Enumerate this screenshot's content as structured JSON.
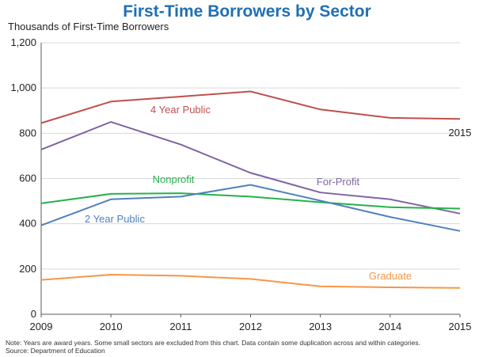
{
  "page": {
    "title": "First-Time Borrowers by Sector",
    "note": "Note: Years are award years. Some small sectors are excluded from this chart. Data contain some duplication across and within categories.",
    "source": "Source: Department of Education"
  },
  "chart_data": {
    "type": "line",
    "title": "First-Time Borrowers by Sector",
    "xlabel": "",
    "ylabel": "Thousands of First-Time Borrowers",
    "x": [
      2009,
      2010,
      2011,
      2012,
      2013,
      2014,
      2015
    ],
    "ylim": [
      0,
      1200
    ],
    "yticks": [
      0,
      200,
      400,
      600,
      800,
      1000,
      1200
    ],
    "ytick_labels": [
      "0",
      "200",
      "400",
      "600",
      "800",
      "1,000",
      "1,200"
    ],
    "grid": "horizontal",
    "series": [
      {
        "name": "4 Year Public",
        "color": "#c0504d",
        "values": [
          845,
          940,
          962,
          985,
          905,
          868,
          863
        ]
      },
      {
        "name": "For-Profit",
        "color": "#8064a2",
        "values": [
          728,
          850,
          750,
          625,
          538,
          508,
          445
        ]
      },
      {
        "name": "Nonprofit",
        "color": "#24b24b",
        "values": [
          490,
          532,
          535,
          520,
          495,
          473,
          467
        ]
      },
      {
        "name": "2 Year Public",
        "color": "#4f81bd",
        "values": [
          393,
          508,
          520,
          572,
          502,
          430,
          368
        ]
      },
      {
        "name": "Graduate",
        "color": "#f79646",
        "values": [
          152,
          175,
          170,
          156,
          123,
          119,
          116
        ]
      }
    ],
    "annotations": [
      "2015"
    ]
  }
}
